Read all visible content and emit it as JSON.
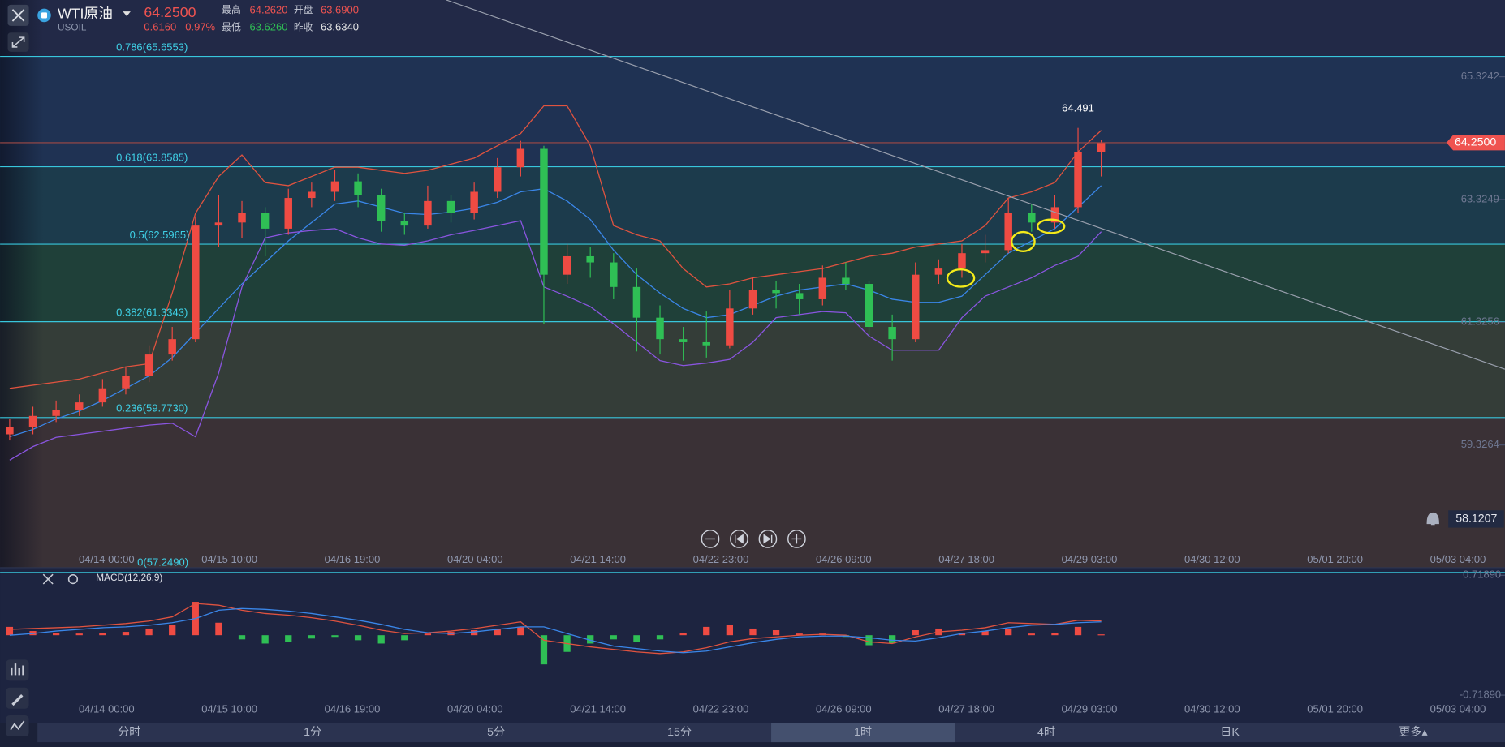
{
  "header": {
    "symbol": "WTI原油",
    "code": "USOIL",
    "price": "64.2500",
    "change": "0.6160",
    "change_pct": "0.97%",
    "high_label": "最高",
    "high": "64.2620",
    "open_label": "开盘",
    "open": "63.6900",
    "low_label": "最低",
    "low": "63.6260",
    "prev_label": "昨收",
    "prev": "63.6340"
  },
  "chart_data": {
    "type": "candlestick",
    "ylim": [
      57.328,
      66.574
    ],
    "yticks": [
      65.3242,
      63.3249,
      61.3256,
      59.3264
    ],
    "x_labels": [
      "04/14 00:00",
      "04/15 10:00",
      "04/16 19:00",
      "04/20 04:00",
      "04/21 14:00",
      "04/22 23:00",
      "04/26 09:00",
      "04/27 18:00",
      "04/29 03:00",
      "04/30 12:00",
      "05/01 20:00",
      "05/03 04:00"
    ],
    "last_price": {
      "value": 64.25,
      "label": "64.2500"
    },
    "cursor_price": 58.1207,
    "max_label": 64.491,
    "fib": [
      {
        "label": "0.786(65.6553)",
        "price": 65.6553
      },
      {
        "label": "0.618(63.8585)",
        "price": 63.8585
      },
      {
        "label": "0.5(62.5965)",
        "price": 62.5965
      },
      {
        "label": "0.382(61.3343)",
        "price": 61.3343
      },
      {
        "label": "0.236(59.7730)",
        "price": 59.773
      },
      {
        "label": "0(57.2490)",
        "price": 57.249
      }
    ],
    "candles": [
      [
        59.5,
        59.75,
        59.4,
        59.62
      ],
      [
        59.62,
        59.95,
        59.5,
        59.8
      ],
      [
        59.8,
        60.05,
        59.7,
        59.9
      ],
      [
        59.9,
        60.15,
        59.8,
        60.02
      ],
      [
        60.02,
        60.4,
        59.95,
        60.25
      ],
      [
        60.25,
        60.6,
        60.15,
        60.45
      ],
      [
        60.45,
        60.95,
        60.35,
        60.8
      ],
      [
        60.8,
        61.25,
        60.7,
        61.05
      ],
      [
        61.05,
        63.05,
        61.0,
        62.9
      ],
      [
        62.9,
        63.4,
        62.55,
        62.95
      ],
      [
        62.95,
        63.3,
        62.7,
        63.1
      ],
      [
        63.1,
        63.2,
        62.4,
        62.85
      ],
      [
        62.85,
        63.5,
        62.75,
        63.35
      ],
      [
        63.35,
        63.6,
        63.2,
        63.45
      ],
      [
        63.45,
        63.8,
        63.3,
        63.62
      ],
      [
        63.62,
        63.75,
        63.2,
        63.4
      ],
      [
        63.4,
        63.5,
        62.8,
        62.98
      ],
      [
        62.98,
        63.1,
        62.75,
        62.9
      ],
      [
        62.9,
        63.55,
        62.85,
        63.3
      ],
      [
        63.3,
        63.4,
        62.95,
        63.1
      ],
      [
        63.1,
        63.6,
        63.0,
        63.45
      ],
      [
        63.45,
        64.0,
        63.35,
        63.85
      ],
      [
        63.85,
        64.28,
        63.7,
        64.15
      ],
      [
        64.15,
        64.2,
        61.3,
        62.1
      ],
      [
        62.1,
        62.6,
        61.95,
        62.4
      ],
      [
        62.4,
        62.55,
        62.05,
        62.3
      ],
      [
        62.3,
        62.45,
        61.7,
        61.9
      ],
      [
        61.9,
        62.2,
        60.85,
        61.4
      ],
      [
        61.4,
        61.6,
        60.8,
        61.05
      ],
      [
        61.05,
        61.25,
        60.7,
        61.0
      ],
      [
        61.0,
        61.5,
        60.75,
        60.95
      ],
      [
        60.95,
        61.85,
        60.9,
        61.55
      ],
      [
        61.55,
        62.05,
        61.45,
        61.85
      ],
      [
        61.85,
        62.0,
        61.55,
        61.8
      ],
      [
        61.8,
        61.95,
        61.45,
        61.7
      ],
      [
        61.7,
        62.25,
        61.6,
        62.05
      ],
      [
        62.05,
        62.3,
        61.85,
        61.95
      ],
      [
        61.95,
        62.0,
        61.1,
        61.25
      ],
      [
        61.25,
        61.45,
        60.7,
        61.05
      ],
      [
        61.05,
        62.3,
        61.0,
        62.1
      ],
      [
        62.1,
        62.35,
        61.95,
        62.2
      ],
      [
        62.2,
        62.6,
        62.05,
        62.45
      ],
      [
        62.45,
        62.75,
        62.3,
        62.5
      ],
      [
        62.5,
        63.35,
        62.45,
        63.1
      ],
      [
        63.1,
        63.25,
        62.8,
        62.95
      ],
      [
        62.95,
        63.4,
        62.85,
        63.2
      ],
      [
        63.2,
        64.491,
        63.1,
        64.1
      ],
      [
        64.1,
        64.3,
        63.7,
        64.25
      ]
    ],
    "bands": [
      {
        "color": "#e0533f",
        "values": [
          60.25,
          60.3,
          60.35,
          60.4,
          60.5,
          60.6,
          60.65,
          61.8,
          63.1,
          63.7,
          64.05,
          63.6,
          63.55,
          63.7,
          63.85,
          63.85,
          63.8,
          63.75,
          63.8,
          63.9,
          64.0,
          64.2,
          64.4,
          64.85,
          64.85,
          64.2,
          62.9,
          62.75,
          62.65,
          62.2,
          61.9,
          61.95,
          62.05,
          62.1,
          62.15,
          62.2,
          62.3,
          62.4,
          62.45,
          62.55,
          62.6,
          62.65,
          62.9,
          63.35,
          63.45,
          63.6,
          64.1,
          64.45
        ]
      },
      {
        "color": "#3a86e8",
        "values": [
          59.46,
          59.58,
          59.75,
          59.88,
          60.05,
          60.25,
          60.45,
          60.75,
          61.15,
          61.55,
          61.95,
          62.3,
          62.65,
          62.95,
          63.25,
          63.3,
          63.2,
          63.1,
          63.08,
          63.12,
          63.18,
          63.28,
          63.45,
          63.5,
          63.3,
          63.0,
          62.5,
          62.1,
          61.8,
          61.55,
          61.4,
          61.45,
          61.6,
          61.75,
          61.85,
          61.9,
          61.95,
          61.85,
          61.7,
          61.65,
          61.65,
          61.75,
          62.1,
          62.45,
          62.65,
          62.85,
          63.2,
          63.55
        ]
      },
      {
        "color": "#8a55e0",
        "values": [
          59.08,
          59.3,
          59.45,
          59.5,
          59.55,
          59.6,
          59.65,
          59.68,
          59.46,
          60.5,
          61.9,
          62.7,
          62.78,
          62.82,
          62.85,
          62.7,
          62.6,
          62.58,
          62.65,
          62.75,
          62.82,
          62.9,
          62.98,
          61.9,
          61.75,
          61.58,
          61.3,
          61.0,
          60.7,
          60.62,
          60.66,
          60.72,
          61.0,
          61.4,
          61.45,
          61.5,
          61.48,
          61.1,
          60.87,
          60.87,
          60.87,
          61.4,
          61.75,
          61.9,
          62.05,
          62.25,
          62.4,
          62.8
        ]
      }
    ]
  },
  "macd": {
    "title": "MACD(12,26,9)",
    "ylim": [
      -1.03,
      0.81
    ],
    "yticks": [
      {
        "value": 0.7189,
        "label": "0.71890"
      },
      {
        "value": -0.7189,
        "label": "-0.71890"
      }
    ],
    "hist": [
      0.1,
      0.05,
      0.03,
      0.02,
      0.03,
      0.04,
      0.08,
      0.12,
      0.4,
      0.15,
      -0.05,
      -0.1,
      -0.08,
      -0.04,
      -0.02,
      -0.06,
      -0.1,
      -0.06,
      0.02,
      0.04,
      0.06,
      0.08,
      0.1,
      -0.35,
      -0.2,
      -0.1,
      -0.05,
      -0.08,
      -0.05,
      0.03,
      0.1,
      0.12,
      0.08,
      0.06,
      0.02,
      0.02,
      -0.02,
      -0.12,
      -0.1,
      0.06,
      0.08,
      0.03,
      0.05,
      0.07,
      0.02,
      0.03,
      0.1,
      0.01
    ],
    "dif": {
      "color": "#e0533f",
      "values": [
        0.07,
        0.08,
        0.09,
        0.1,
        0.12,
        0.14,
        0.17,
        0.22,
        0.38,
        0.36,
        0.3,
        0.26,
        0.24,
        0.21,
        0.17,
        0.12,
        0.06,
        0.02,
        0.03,
        0.05,
        0.08,
        0.12,
        0.16,
        -0.06,
        -0.1,
        -0.14,
        -0.17,
        -0.2,
        -0.22,
        -0.2,
        -0.15,
        -0.08,
        -0.04,
        -0.02,
        0.0,
        0.01,
        0.0,
        -0.08,
        -0.1,
        -0.02,
        0.04,
        0.06,
        0.09,
        0.15,
        0.14,
        0.13,
        0.18,
        0.17
      ]
    },
    "dea": {
      "color": "#3a86e8",
      "values": [
        0.0,
        0.02,
        0.05,
        0.07,
        0.09,
        0.1,
        0.12,
        0.15,
        0.2,
        0.3,
        0.32,
        0.31,
        0.29,
        0.26,
        0.22,
        0.18,
        0.13,
        0.07,
        0.03,
        0.02,
        0.04,
        0.07,
        0.1,
        0.1,
        0.02,
        -0.06,
        -0.13,
        -0.16,
        -0.19,
        -0.21,
        -0.19,
        -0.14,
        -0.09,
        -0.05,
        -0.02,
        -0.01,
        -0.01,
        -0.03,
        -0.06,
        -0.07,
        -0.03,
        0.02,
        0.05,
        0.09,
        0.12,
        0.13,
        0.15,
        0.16
      ]
    }
  },
  "tabs": [
    "分时",
    "1分",
    "5分",
    "15分",
    "1时",
    "4时",
    "日K",
    "更多▴"
  ],
  "selected_tab": 4
}
